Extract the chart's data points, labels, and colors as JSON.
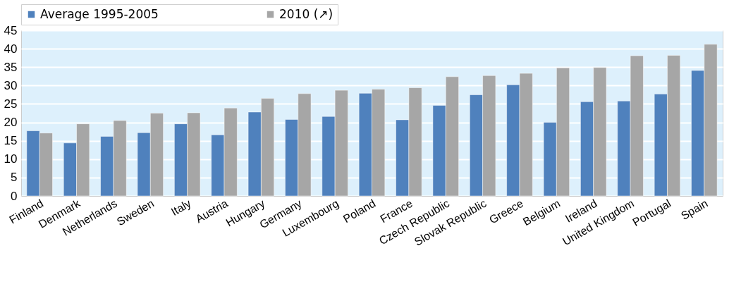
{
  "chart_data": {
    "type": "bar",
    "categories": [
      "Finland",
      "Denmark",
      "Netherlands",
      "Sweden",
      "Italy",
      "Austria",
      "Hungary",
      "Germany",
      "Luxembourg",
      "Poland",
      "France",
      "Czech Republic",
      "Slovak Republic",
      "Greece",
      "Belgium",
      "Ireland",
      "United Kingdom",
      "Portugal",
      "Spain"
    ],
    "series": [
      {
        "name": "Average 1995-2005",
        "color": "#4f81bd",
        "values": [
          17.7,
          14.4,
          16.2,
          17.2,
          19.6,
          16.6,
          22.8,
          20.8,
          21.6,
          27.9,
          20.7,
          24.6,
          27.5,
          30.2,
          20.0,
          25.6,
          25.8,
          27.7,
          34.1
        ]
      },
      {
        "name": "2010 (↗)",
        "color": "#a6a6a6",
        "values": [
          17.1,
          19.6,
          20.5,
          22.5,
          22.6,
          23.9,
          26.5,
          27.8,
          28.7,
          29.0,
          29.4,
          32.4,
          32.7,
          33.3,
          34.8,
          34.9,
          38.1,
          38.2,
          41.2
        ]
      }
    ],
    "ylim": [
      0,
      45
    ],
    "yticks": [
      0,
      5,
      10,
      15,
      20,
      25,
      30,
      35,
      40,
      45
    ],
    "grid": "y",
    "legend": "top"
  }
}
